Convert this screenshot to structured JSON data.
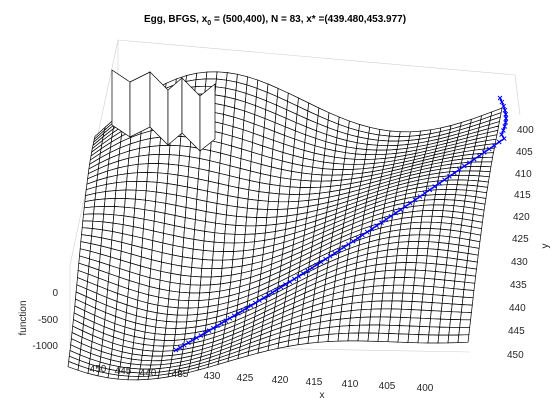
{
  "chart_data": {
    "type": "surface",
    "title": {
      "prefix": "Egg, BFGS, x",
      "sub": "0",
      "suffix": " = (500,400), N = 83, x* =(439.480,453.977)"
    },
    "xlabel": "x",
    "ylabel": "y",
    "zlabel": "function",
    "x_ticks": [
      "450",
      "445",
      "440",
      "435",
      "430",
      "425",
      "420",
      "415",
      "410",
      "405",
      "400"
    ],
    "y_ticks": [
      "400",
      "405",
      "410",
      "415",
      "420",
      "425",
      "430",
      "435",
      "440",
      "445",
      "450"
    ],
    "z_ticks": [
      "0",
      "-500",
      "-1000"
    ],
    "grid": true,
    "start": [
      500,
      400
    ],
    "minimizer": [
      439.48,
      453.977
    ],
    "iterations": 83,
    "path_color": "#0000ff",
    "mesh_color": "#000000"
  }
}
